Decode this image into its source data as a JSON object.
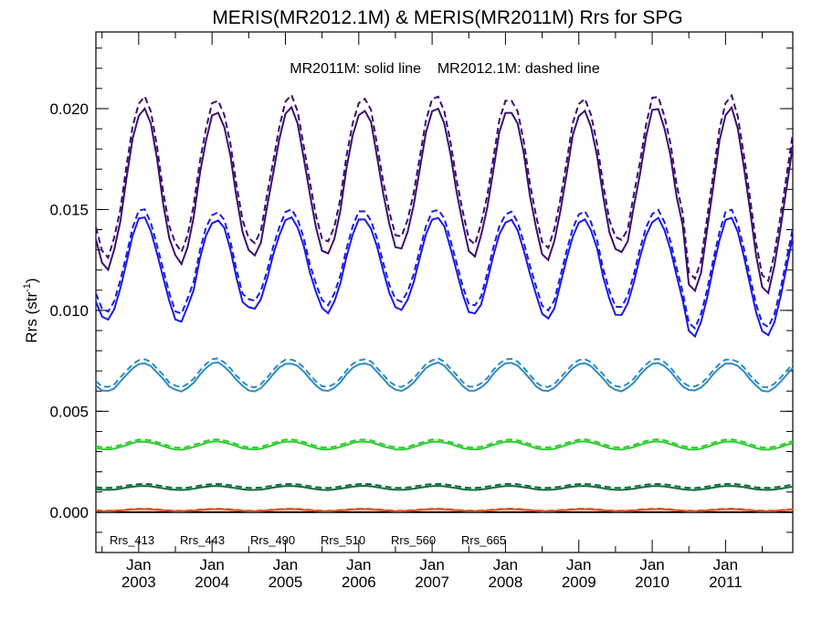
{
  "chart_data": {
    "type": "line",
    "title": "MERIS(MR2012.1M) & MERIS(MR2011M)  Rrs for SPG",
    "annotation": "MR2011M: solid line    MR2012.1M: dashed line",
    "xlabel": "",
    "ylabel_main": "Rrs (str",
    "ylabel_sup": "-1",
    "ylabel_close": ")",
    "ylim": [
      -0.002,
      0.0238
    ],
    "xlim": [
      "2002-06",
      "2011-12"
    ],
    "x_ticks": [
      {
        "date": "2003-01",
        "top": "Jan",
        "bottom": "2003"
      },
      {
        "date": "2004-01",
        "top": "Jan",
        "bottom": "2004"
      },
      {
        "date": "2005-01",
        "top": "Jan",
        "bottom": "2005"
      },
      {
        "date": "2006-01",
        "top": "Jan",
        "bottom": "2006"
      },
      {
        "date": "2007-01",
        "top": "Jan",
        "bottom": "2007"
      },
      {
        "date": "2008-01",
        "top": "Jan",
        "bottom": "2008"
      },
      {
        "date": "2009-01",
        "top": "Jan",
        "bottom": "2009"
      },
      {
        "date": "2010-01",
        "top": "Jan",
        "bottom": "2010"
      },
      {
        "date": "2011-01",
        "top": "Jan",
        "bottom": "2011"
      }
    ],
    "y_ticks": [
      {
        "value": 0.0,
        "label": "0.000"
      },
      {
        "value": 0.005,
        "label": "0.005"
      },
      {
        "value": 0.01,
        "label": "0.010"
      },
      {
        "value": 0.015,
        "label": "0.015"
      },
      {
        "value": 0.02,
        "label": "0.020"
      }
    ],
    "grid": false,
    "legend_position": "bottom-left",
    "series": [
      {
        "name": "Rrs_413",
        "color": "#3b0f6f",
        "solid": {
          "summer_min": 0.0125,
          "winter_max": 0.02,
          "summer_mins": [
            0.012,
            0.0123,
            0.0127,
            0.0128,
            0.013,
            0.0128,
            0.0125,
            0.0127,
            0.011
          ]
        },
        "dashed_offset": 0.0006
      },
      {
        "name": "Rrs_443",
        "color": "#1a1ae6",
        "solid": {
          "summer_min": 0.0097,
          "winter_max": 0.0146,
          "summer_mins": [
            0.0094,
            0.0095,
            0.01,
            0.0099,
            0.01,
            0.0098,
            0.0096,
            0.0097,
            0.0088
          ]
        },
        "dashed_offset": 0.0004
      },
      {
        "name": "Rrs_490",
        "color": "#2e8bc0",
        "solid": {
          "summer_min": 0.006,
          "winter_max": 0.0074
        },
        "dashed_offset": 0.0002
      },
      {
        "name": "Rrs_510",
        "color": "#2ecc2e",
        "solid": {
          "summer_min": 0.0031,
          "winter_max": 0.0035
        },
        "dashed_offset": 0.0001
      },
      {
        "name": "Rrs_560",
        "color": "#0f6b3a",
        "solid": {
          "summer_min": 0.0011,
          "winter_max": 0.0013
        },
        "dashed_offset": 0.0001
      },
      {
        "name": "Rrs_665",
        "color": "#d9531e",
        "solid": {
          "summer_min": 5e-05,
          "winter_max": 0.00015
        },
        "dashed_offset": 2e-05
      }
    ]
  }
}
